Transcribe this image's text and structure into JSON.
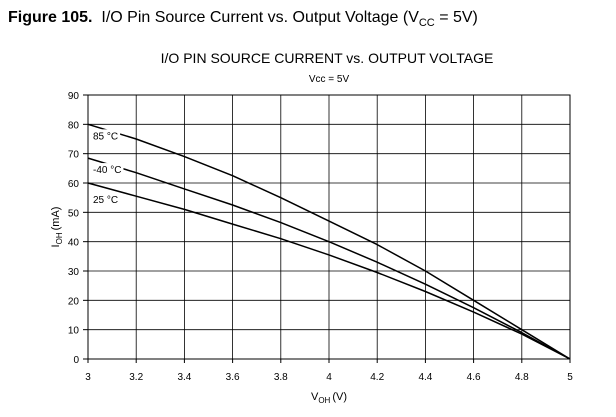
{
  "figure": {
    "number": "Figure 105.",
    "caption_prefix": "I/O Pin Source Current vs. Output Voltage (V",
    "caption_sub": "CC",
    "caption_suffix": " = 5V)"
  },
  "chart_data": {
    "type": "line",
    "title": "I/O PIN SOURCE CURRENT vs. OUTPUT VOLTAGE",
    "subtitle": "Vcc = 5V",
    "xlabel": {
      "main": "V",
      "sub": "OH",
      "unit": "(V)"
    },
    "ylabel": {
      "main": "I",
      "sub": "OH",
      "unit": "(mA)"
    },
    "xlim": [
      3,
      5
    ],
    "ylim": [
      0,
      90
    ],
    "x_ticks": [
      "3",
      "3.2",
      "3.4",
      "3.6",
      "3.8",
      "4",
      "4.2",
      "4.4",
      "4.6",
      "4.8",
      "5"
    ],
    "y_ticks": [
      "0",
      "10",
      "20",
      "30",
      "40",
      "50",
      "60",
      "70",
      "80",
      "90"
    ],
    "grid": true,
    "series": [
      {
        "name": "85 °C",
        "x": [
          3.0,
          3.2,
          3.4,
          3.6,
          3.8,
          4.0,
          4.2,
          4.4,
          4.6,
          4.8,
          5.0
        ],
        "y": [
          80,
          75,
          69,
          62.5,
          55,
          47,
          39,
          30,
          20,
          10,
          0
        ]
      },
      {
        "name": "-40 °C",
        "x": [
          3.0,
          3.2,
          3.4,
          3.6,
          3.8,
          4.0,
          4.2,
          4.4,
          4.6,
          4.8,
          5.0
        ],
        "y": [
          68.5,
          63.5,
          58,
          52.5,
          46.5,
          40,
          33,
          25.5,
          17.5,
          9,
          0
        ]
      },
      {
        "name": "25 °C",
        "x": [
          3.0,
          3.2,
          3.4,
          3.6,
          3.8,
          4.0,
          4.2,
          4.4,
          4.6,
          4.8,
          5.0
        ],
        "y": [
          60,
          55.5,
          51,
          46,
          41,
          35.5,
          29.5,
          23,
          16,
          8.5,
          0
        ]
      }
    ]
  }
}
